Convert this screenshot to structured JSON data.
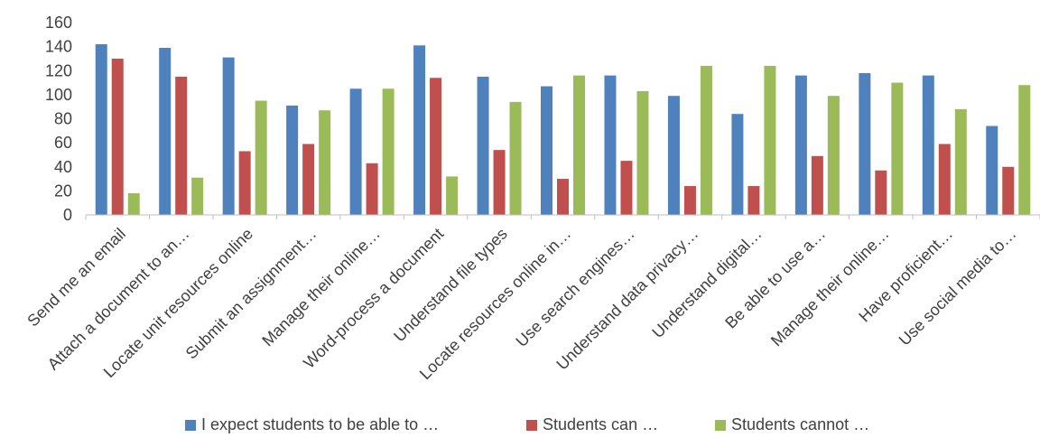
{
  "chart_data": {
    "type": "bar",
    "categories": [
      "Send me an email",
      "Attach a document to an…",
      "Locate unit resources online",
      "Submit an assignment…",
      "Manage their online…",
      "Word-process a document",
      "Understand file types",
      "Locate resources online in…",
      "Use search engines…",
      "Understand data privacy…",
      "Understand digital…",
      "Be able to use a…",
      "Manage their online…",
      "Have proficient…",
      "Use social media to…"
    ],
    "series": [
      {
        "name": "I expect students to be able to …",
        "color": "#4f81bd",
        "values": [
          142,
          139,
          131,
          91,
          105,
          141,
          115,
          107,
          116,
          99,
          84,
          116,
          118,
          116,
          74
        ]
      },
      {
        "name": "Students can …",
        "color": "#c0504d",
        "values": [
          130,
          115,
          53,
          59,
          43,
          114,
          54,
          30,
          45,
          24,
          24,
          49,
          37,
          59,
          40
        ]
      },
      {
        "name": "Students cannot …",
        "color": "#9bbb59",
        "values": [
          18,
          31,
          95,
          87,
          105,
          32,
          94,
          116,
          103,
          124,
          124,
          99,
          110,
          88,
          108
        ]
      }
    ],
    "ylim": [
      0,
      160
    ],
    "yticks": [
      "0",
      "20",
      "40",
      "60",
      "80",
      "100",
      "120",
      "140",
      "160"
    ],
    "grid": false,
    "legend_position": "bottom",
    "title": "",
    "xlabel": "",
    "ylabel": ""
  }
}
